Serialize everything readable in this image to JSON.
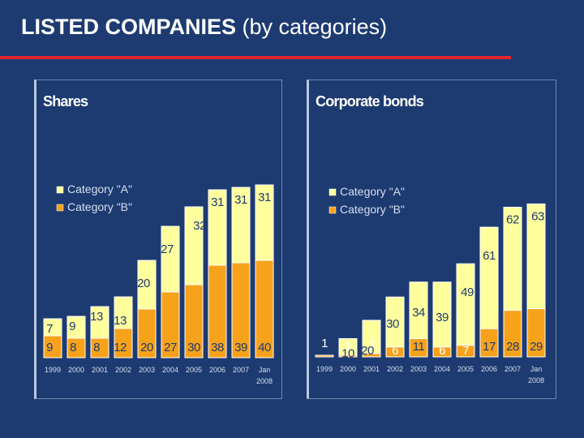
{
  "slide": {
    "title_bold": "LISTED COMPANIES",
    "title_rest": " (by categories)"
  },
  "colors": {
    "background": "#1d3b70",
    "accent_rule": "#e3262e",
    "category_a": "#ffff9e",
    "category_b": "#f7a21b"
  },
  "chart_data": [
    {
      "type": "bar",
      "stacked": true,
      "title": "Shares",
      "categories": [
        "1999",
        "2000",
        "2001",
        "2002",
        "2003",
        "2004",
        "2005",
        "2006",
        "2007",
        "Jan 2008"
      ],
      "series": [
        {
          "name": "Category \"B\"",
          "values": [
            9,
            8,
            8,
            12,
            20,
            27,
            30,
            38,
            39,
            40
          ]
        },
        {
          "name": "Category \"A\"",
          "values": [
            7,
            9,
            13,
            13,
            20,
            27,
            32,
            31,
            31,
            31
          ]
        }
      ],
      "legend": "left",
      "grid": false,
      "data_labels": true
    },
    {
      "type": "bar",
      "stacked": true,
      "title": "Corporate bonds",
      "categories": [
        "1999",
        "2000",
        "2001",
        "2002",
        "2003",
        "2004",
        "2005",
        "2006",
        "2007",
        "Jan 2008"
      ],
      "series": [
        {
          "name": "Category \"B\"",
          "values": [
            1,
            1,
            2,
            6,
            11,
            6,
            7,
            17,
            28,
            29
          ]
        },
        {
          "name": "Category \"A\"",
          "values": [
            0,
            10,
            20,
            30,
            34,
            39,
            49,
            61,
            62,
            63
          ]
        }
      ],
      "legend": "left",
      "grid": false,
      "data_labels": true
    }
  ]
}
